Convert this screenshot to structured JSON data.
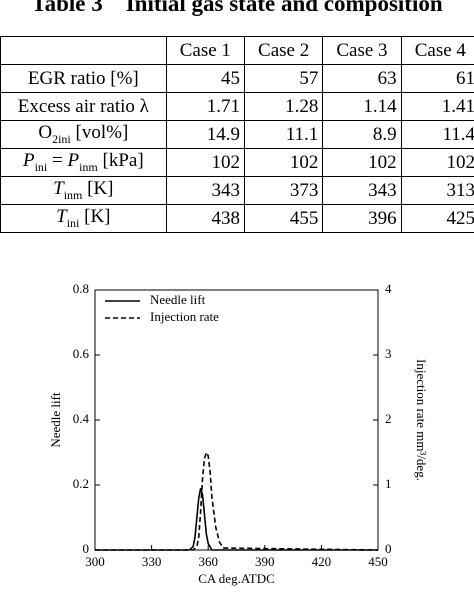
{
  "table": {
    "title": "Table 3    Initial gas state and composition",
    "columns": [
      "Case 1",
      "Case 2",
      "Case 3",
      "Case 4"
    ],
    "rows": [
      {
        "label": [
          {
            "t": "EGR ratio [%]"
          }
        ],
        "values": [
          45,
          57,
          63,
          61
        ]
      },
      {
        "label": [
          {
            "t": "Excess air ratio λ"
          }
        ],
        "values": [
          1.71,
          1.28,
          1.14,
          1.41
        ]
      },
      {
        "label": [
          {
            "t": "O"
          },
          {
            "sub": "2ini"
          },
          {
            "t": " [vol%]"
          }
        ],
        "values": [
          14.9,
          11.1,
          8.9,
          11.4
        ]
      },
      {
        "label": [
          {
            "i": "P"
          },
          {
            "sub": "ini"
          },
          {
            "t": " = "
          },
          {
            "i": "P"
          },
          {
            "sub": "inm"
          },
          {
            "t": " [kPa]"
          }
        ],
        "values": [
          102,
          102,
          102,
          102
        ]
      },
      {
        "label": [
          {
            "i": "T"
          },
          {
            "sub": "inm"
          },
          {
            "t": " [K]"
          }
        ],
        "values": [
          343,
          373,
          343,
          313
        ]
      },
      {
        "label": [
          {
            "i": "T"
          },
          {
            "sub": "ini"
          },
          {
            "t": " [K]"
          }
        ],
        "values": [
          438,
          455,
          396,
          425
        ]
      }
    ]
  },
  "chart_data": {
    "type": "line",
    "xlabel": "CA deg.ATDC",
    "ylabel": "Needle lift",
    "y2label": "Injection rate mm³/deg.",
    "xlim": [
      300,
      450
    ],
    "xticks": [
      300,
      330,
      360,
      390,
      420,
      450
    ],
    "ylim": [
      0,
      0.8
    ],
    "yticks": [
      0,
      0.2,
      0.4,
      0.6,
      0.8
    ],
    "y2lim": [
      0,
      4
    ],
    "y2ticks": [
      0,
      1,
      2,
      3,
      4
    ],
    "legend": "upper left",
    "series": [
      {
        "name": "Needle lift",
        "color": "#000000",
        "dash": "solid",
        "x": [
          300,
          350,
          352,
          353,
          354,
          355,
          356,
          357,
          358,
          359,
          360,
          362,
          450
        ],
        "values": [
          0,
          0,
          0.01,
          0.04,
          0.1,
          0.16,
          0.19,
          0.17,
          0.11,
          0.05,
          0.02,
          0,
          0
        ]
      },
      {
        "name": "Injection rate",
        "color": "#000000",
        "dash": "dashed",
        "axis": "y2",
        "x": [
          300,
          352,
          354,
          355,
          356,
          357,
          358,
          359,
          360,
          361,
          362,
          364,
          366,
          368,
          450
        ],
        "values": [
          0,
          0,
          0.05,
          0.2,
          0.6,
          1.1,
          1.4,
          1.5,
          1.45,
          1.2,
          0.8,
          0.35,
          0.12,
          0.03,
          0
        ]
      }
    ]
  }
}
